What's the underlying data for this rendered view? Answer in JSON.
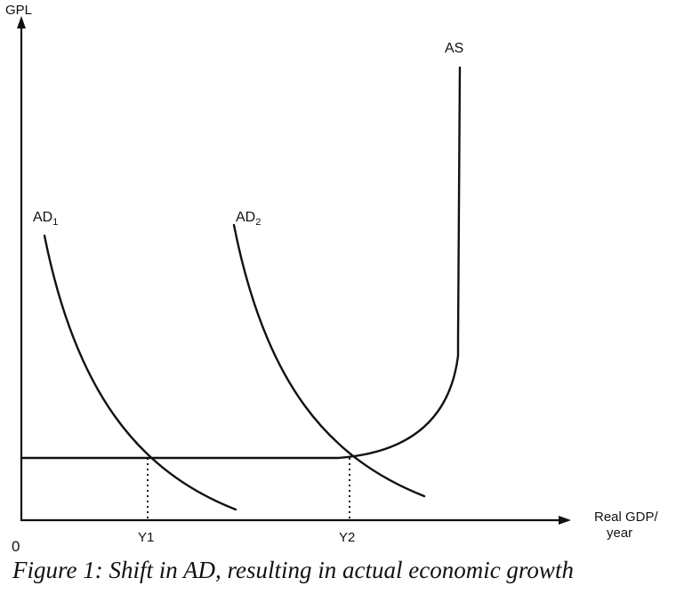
{
  "diagram": {
    "y_axis_label": "GPL",
    "x_axis_label_line1": "Real GDP/",
    "x_axis_label_line2": "year",
    "origin_label": "0",
    "curves": {
      "as": {
        "label": "AS"
      },
      "ad1": {
        "label": "AD",
        "subscript": "1"
      },
      "ad2": {
        "label": "AD",
        "subscript": "2"
      }
    },
    "x_markers": [
      "Y1",
      "Y2"
    ]
  },
  "caption": "Figure 1: Shift in AD, resulting in actual economic growth",
  "colors": {
    "line": "#111111",
    "background": "#ffffff"
  }
}
